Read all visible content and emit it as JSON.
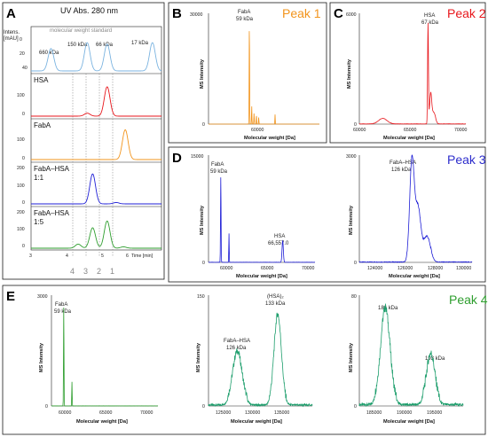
{
  "colors": {
    "blue_std": "#7ab3e0",
    "red": "#e8171c",
    "orange": "#f2941c",
    "blue": "#1f1fd6",
    "green": "#2e9e2e",
    "teal": "#1d9e6c",
    "peak1": "#f2941c",
    "peak2": "#e8171c",
    "peak3": "#2d2dcc",
    "peak4": "#2e9e2e"
  },
  "panelA": {
    "letter": "A",
    "title": "UV Abs. 280 nm",
    "ylabel_line1": "Intens.",
    "ylabel_line2": "[mAU]",
    "std_label": "molecular weight standard",
    "std_peaks": [
      "660 kDa",
      "150 kDa",
      "66 kDa",
      "17 kDa"
    ],
    "rows": [
      {
        "label": "",
        "label2": ""
      },
      {
        "label": "HSA",
        "label2": ""
      },
      {
        "label": "FabA",
        "label2": ""
      },
      {
        "label": "FabA–HSA",
        "label2": "1:1"
      },
      {
        "label": "FabA–HSA",
        "label2": "1:5"
      }
    ],
    "row_yticks": [
      [
        "0",
        "20",
        "40"
      ],
      [
        "100",
        "0"
      ],
      [
        "100",
        "0"
      ],
      [
        "200",
        "100",
        "0"
      ],
      [
        "200",
        "100",
        "0"
      ]
    ],
    "xticks": [
      "3",
      "4",
      "5",
      "6"
    ],
    "xunit": "Time [min]",
    "peak_numbers": [
      "4",
      "3",
      "2",
      "1"
    ]
  },
  "panelB": {
    "letter": "B",
    "peak_label": "Peak 1",
    "ymax": "30000",
    "ymin": "0",
    "xtick": "60000",
    "xlabel": "Molecular weight [Da]",
    "ylabel": "MS Intensity",
    "ann": [
      "FabA",
      "59 kDa"
    ]
  },
  "panelC": {
    "letter": "C",
    "peak_label": "Peak 2",
    "ymax": "6000",
    "ymin": "0",
    "xticks": [
      "60000",
      "65000",
      "70000"
    ],
    "xlabel": "Molecular weight [Da]",
    "ylabel": "MS Intensity",
    "ann": [
      "HSA",
      "67 kDa"
    ]
  },
  "panelD": {
    "letter": "D",
    "peak_label": "Peak 3",
    "left": {
      "ymax": "15000",
      "ymin": "0",
      "xticks": [
        "60000",
        "65000",
        "70000"
      ],
      "xlabel": "Molecular weight [Da]",
      "ylabel": "MS Intensity",
      "ann1": [
        "FabA",
        "59 kDa"
      ],
      "ann2": [
        "HSA",
        "66,557.0"
      ]
    },
    "right": {
      "ymax": "3000",
      "ymin": "0",
      "xticks": [
        "124000",
        "126000",
        "128000",
        "130000"
      ],
      "xlabel": "Molecular weight [Da]",
      "ylabel": "MS Intensity",
      "ann": [
        "FabA–HSA",
        "126 kDa"
      ]
    }
  },
  "panelE": {
    "letter": "E",
    "peak_label": "Peak 4",
    "p1": {
      "ymax": "3000",
      "ymin": "0",
      "xticks": [
        "60000",
        "65000",
        "70000"
      ],
      "xlabel": "Molecular weight [Da]",
      "ylabel": "MS Intensity",
      "ann": [
        "FabA",
        "59 kDa"
      ]
    },
    "p2": {
      "ymax": "150",
      "ymin": "0",
      "xticks": [
        "125000",
        "130000",
        "135000"
      ],
      "xlabel": "Molecular weight [Da]",
      "ylabel": "MS Intensity",
      "ann1": [
        "FabA–HSA",
        "126 kDa"
      ],
      "ann2": [
        "(HSA)₂",
        "133 kDa"
      ]
    },
    "p3": {
      "ymax": "80",
      "ymin": "0",
      "xticks": [
        "185000",
        "190000",
        "195000"
      ],
      "xlabel": "Molecular weight [Da]",
      "ylabel": "MS Intensity",
      "ann1": [
        "186 kDa"
      ],
      "ann2": [
        "193 kDa"
      ]
    }
  },
  "chart_data": [
    {
      "type": "line",
      "panel": "A",
      "title": "UV Abs. 280 nm",
      "xlabel": "Time [min]",
      "ylabel": "Intens. [mAU]",
      "xlim": [
        3,
        6.6
      ],
      "series": [
        {
          "name": "molecular weight standard",
          "ylim": [
            0,
            50
          ],
          "peaks": [
            {
              "x": 3.55,
              "y": 30
            },
            {
              "x": 4.55,
              "y": 38
            },
            {
              "x": 5.1,
              "y": 36
            },
            {
              "x": 6.35,
              "y": 38
            }
          ]
        },
        {
          "name": "HSA",
          "ylim": [
            0,
            130
          ],
          "peaks": [
            {
              "x": 4.55,
              "y": 10
            },
            {
              "x": 5.1,
              "y": 100
            }
          ]
        },
        {
          "name": "FabA",
          "ylim": [
            0,
            150
          ],
          "peaks": [
            {
              "x": 5.6,
              "y": 120
            }
          ]
        },
        {
          "name": "FabA–HSA 1:1",
          "ylim": [
            0,
            280
          ],
          "peaks": [
            {
              "x": 4.7,
              "y": 220
            },
            {
              "x": 5.35,
              "y": 10
            }
          ]
        },
        {
          "name": "FabA–HSA 1:5",
          "ylim": [
            0,
            280
          ],
          "peaks": [
            {
              "x": 4.3,
              "y": 30
            },
            {
              "x": 4.7,
              "y": 150
            },
            {
              "x": 5.1,
              "y": 200
            },
            {
              "x": 5.55,
              "y": 10
            }
          ]
        }
      ]
    },
    {
      "type": "line",
      "panel": "B",
      "xlabel": "Molecular weight [Da]",
      "ylabel": "MS Intensity",
      "xlim": [
        55500,
        65000
      ],
      "ylim": [
        0,
        30000
      ],
      "peaks": [
        {
          "x": 59000,
          "y": 28000
        },
        {
          "x": 59200,
          "y": 5000
        },
        {
          "x": 59400,
          "y": 3000
        },
        {
          "x": 59600,
          "y": 2500
        },
        {
          "x": 59800,
          "y": 1800
        },
        {
          "x": 61200,
          "y": 2600
        }
      ]
    },
    {
      "type": "line",
      "panel": "C",
      "xlabel": "Molecular weight [Da]",
      "ylabel": "MS Intensity",
      "xlim": [
        60000,
        70000
      ],
      "ylim": [
        0,
        6000
      ],
      "peaks": [
        {
          "x": 62200,
          "y": 300
        },
        {
          "x": 66450,
          "y": 5400
        },
        {
          "x": 66700,
          "y": 1600
        },
        {
          "x": 67000,
          "y": 600
        }
      ]
    },
    {
      "type": "line",
      "panel": "D-left",
      "xlabel": "Molecular weight [Da]",
      "ylabel": "MS Intensity",
      "xlim": [
        57500,
        70500
      ],
      "ylim": [
        0,
        15000
      ],
      "peaks": [
        {
          "x": 59000,
          "y": 12000
        },
        {
          "x": 60000,
          "y": 4000
        },
        {
          "x": 66557,
          "y": 3000
        }
      ]
    },
    {
      "type": "line",
      "panel": "D-right",
      "xlabel": "Molecular weight [Da]",
      "ylabel": "MS Intensity",
      "xlim": [
        122500,
        130000
      ],
      "ylim": [
        0,
        3000
      ],
      "peaks": [
        {
          "x": 126000,
          "y": 2800
        },
        {
          "x": 126400,
          "y": 1500
        },
        {
          "x": 127000,
          "y": 700
        }
      ]
    },
    {
      "type": "line",
      "panel": "E-left",
      "xlabel": "Molecular weight [Da]",
      "ylabel": "MS Intensity",
      "xlim": [
        57500,
        70500
      ],
      "ylim": [
        0,
        3000
      ],
      "peaks": [
        {
          "x": 59000,
          "y": 2700
        },
        {
          "x": 60000,
          "y": 650
        }
      ]
    },
    {
      "type": "line",
      "panel": "E-middle",
      "xlabel": "Molecular weight [Da]",
      "ylabel": "MS Intensity",
      "xlim": [
        121000,
        139000
      ],
      "ylim": [
        0,
        150
      ],
      "peaks": [
        {
          "x": 126000,
          "y": 70
        },
        {
          "x": 133000,
          "y": 120
        }
      ]
    },
    {
      "type": "line",
      "panel": "E-right",
      "xlabel": "Molecular weight [Da]",
      "ylabel": "MS Intensity",
      "xlim": [
        182000,
        198000
      ],
      "ylim": [
        0,
        80
      ],
      "peaks": [
        {
          "x": 186000,
          "y": 68
        },
        {
          "x": 193000,
          "y": 35
        }
      ]
    }
  ]
}
